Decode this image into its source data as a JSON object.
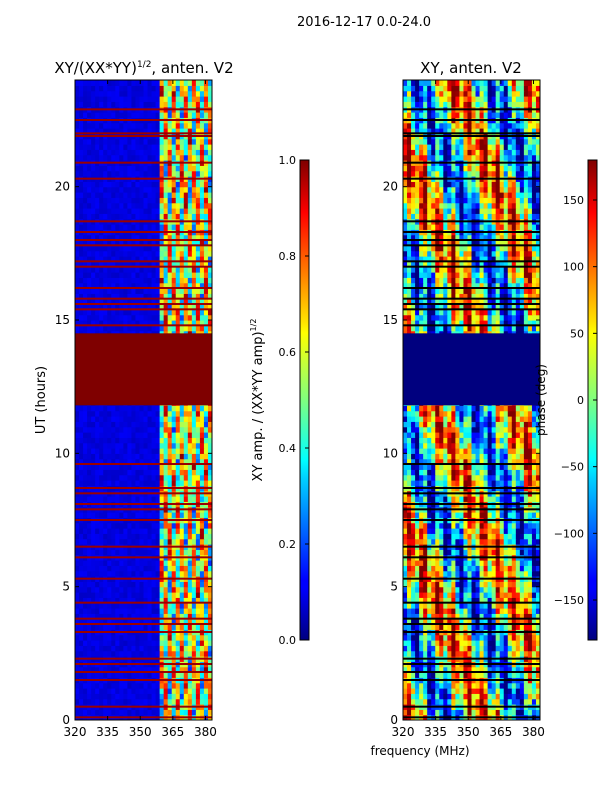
{
  "figure_title": "2016-12-17 0.0-24.0",
  "xlabel": "frequency (MHz)",
  "chart_data": [
    {
      "type": "heatmap",
      "title": "XY/(XX*YY)^1/2, anten. V2",
      "title_main": "XY/(XX*YY)",
      "title_exp": "1/2",
      "title_tail": ", anten. V2",
      "ylabel": "UT (hours)",
      "xlim": [
        320,
        383
      ],
      "ylim": [
        0,
        24
      ],
      "xticks": [
        "320",
        "335",
        "350",
        "365",
        "380"
      ],
      "yticks": [
        "0",
        "5",
        "10",
        "15",
        "20"
      ],
      "colorbar": {
        "label_main": "XY amp. / (XX*YY amp)",
        "label_exp": "1/2",
        "range": [
          0.0,
          1.0
        ],
        "ticks": [
          "0.0",
          "0.2",
          "0.4",
          "0.6",
          "0.8",
          "1.0"
        ]
      },
      "flagged_ut_ranges": [
        [
          11.8,
          14.5
        ]
      ],
      "flagged_ut_lines": [
        0.1,
        0.5,
        1.5,
        1.8,
        2.1,
        2.3,
        3.3,
        3.6,
        3.8,
        4.4,
        5.3,
        6.1,
        6.5,
        7.5,
        7.9,
        8.1,
        8.5,
        8.7,
        9.6,
        14.8,
        15.4,
        15.6,
        15.8,
        16.2,
        17.0,
        17.2,
        17.8,
        18.0,
        18.3,
        18.7,
        20.3,
        20.9,
        21.9,
        22.0,
        22.5,
        22.9
      ],
      "high_amp_freq_range_mhz": [
        358,
        383
      ]
    },
    {
      "type": "heatmap",
      "title": "XY, anten. V2",
      "xlim": [
        320,
        383
      ],
      "ylim": [
        0,
        24
      ],
      "xticks": [
        "320",
        "335",
        "350",
        "365",
        "380"
      ],
      "yticks": [
        "0",
        "5",
        "10",
        "15",
        "20"
      ],
      "colorbar": {
        "label": "phase (deg)",
        "range": [
          -180,
          180
        ],
        "ticks": [
          "-150",
          "-100",
          "-50",
          "0",
          "50",
          "100",
          "150"
        ]
      },
      "flagged_ut_ranges": [
        [
          11.8,
          14.5
        ]
      ],
      "flagged_ut_lines": [
        0.1,
        0.5,
        1.5,
        1.8,
        2.1,
        2.3,
        3.3,
        3.6,
        3.8,
        4.4,
        5.3,
        6.1,
        6.5,
        7.5,
        7.9,
        8.1,
        8.5,
        8.7,
        9.6,
        14.8,
        15.4,
        15.6,
        15.8,
        16.2,
        17.0,
        17.2,
        17.8,
        18.0,
        18.3,
        18.7,
        20.3,
        20.9,
        21.9,
        22.0,
        22.5,
        22.9
      ]
    }
  ]
}
